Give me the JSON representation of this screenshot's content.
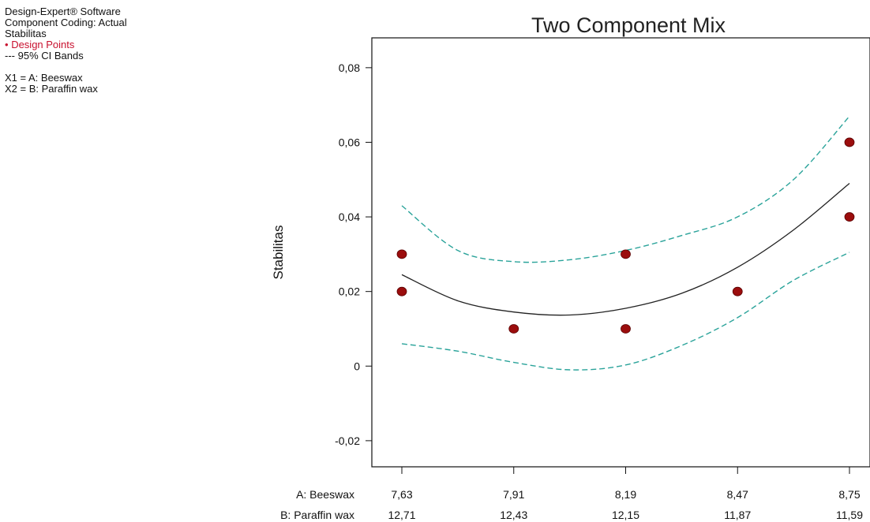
{
  "info": {
    "software": "Design-Expert® Software",
    "coding": "Component Coding: Actual",
    "response": "Stabilitas",
    "legend_points": "Design Points",
    "legend_ci": "95% CI Bands",
    "x1": "X1 = A: Beeswax",
    "x2": "X2 = B: Paraffin wax",
    "point_marker": "•",
    "ci_marker": "---"
  },
  "colors": {
    "fit_line": "#222222",
    "ci_band": "#2aa39a",
    "design_point": "#9b0d0d",
    "legend_points_text": "#c8102e"
  },
  "chart_data": {
    "type": "line",
    "title": "Two Component Mix",
    "ylabel": "Stabilitas",
    "xlabel_rows": [
      {
        "label": "A: Beeswax",
        "ticks": [
          "7,63",
          "7,91",
          "8,19",
          "8,47",
          "8,75"
        ]
      },
      {
        "label": "B: Paraffin wax",
        "ticks": [
          "12,71",
          "12,43",
          "12,15",
          "11,87",
          "11,59"
        ]
      }
    ],
    "xlim": [
      7.63,
      8.75
    ],
    "ylim": [
      -0.027,
      0.088
    ],
    "yticks": [
      -0.02,
      0,
      0.02,
      0.04,
      0.06,
      0.08
    ],
    "ytick_labels": [
      "-0,02",
      "0",
      "0,02",
      "0,04",
      "0,06",
      "0,08"
    ],
    "series": [
      {
        "name": "Design Points",
        "style": "points",
        "x": [
          7.63,
          7.63,
          7.91,
          8.19,
          8.19,
          8.47,
          8.75,
          8.75
        ],
        "y": [
          0.03,
          0.02,
          0.01,
          0.03,
          0.01,
          0.02,
          0.06,
          0.04
        ]
      },
      {
        "name": "Fit",
        "style": "solid",
        "x": [
          7.63,
          7.77,
          7.91,
          8.05,
          8.19,
          8.33,
          8.47,
          8.61,
          8.75
        ],
        "y": [
          0.0245,
          0.0175,
          0.0145,
          0.0137,
          0.0155,
          0.0195,
          0.0265,
          0.0365,
          0.049
        ]
      },
      {
        "name": "95% CI Bands",
        "style": "dashed",
        "x": [
          7.63,
          7.77,
          7.91,
          8.05,
          8.19,
          8.33,
          8.47,
          8.61,
          8.75
        ],
        "y": [
          0.043,
          0.031,
          0.028,
          0.0285,
          0.031,
          0.035,
          0.04,
          0.05,
          0.067
        ]
      },
      {
        "name": "95% CI Bands",
        "style": "dashed",
        "x": [
          7.63,
          7.77,
          7.91,
          8.05,
          8.19,
          8.33,
          8.47,
          8.61,
          8.75
        ],
        "y": [
          0.006,
          0.004,
          0.001,
          -0.001,
          0.0003,
          0.0055,
          0.013,
          0.023,
          0.0305
        ]
      }
    ]
  }
}
